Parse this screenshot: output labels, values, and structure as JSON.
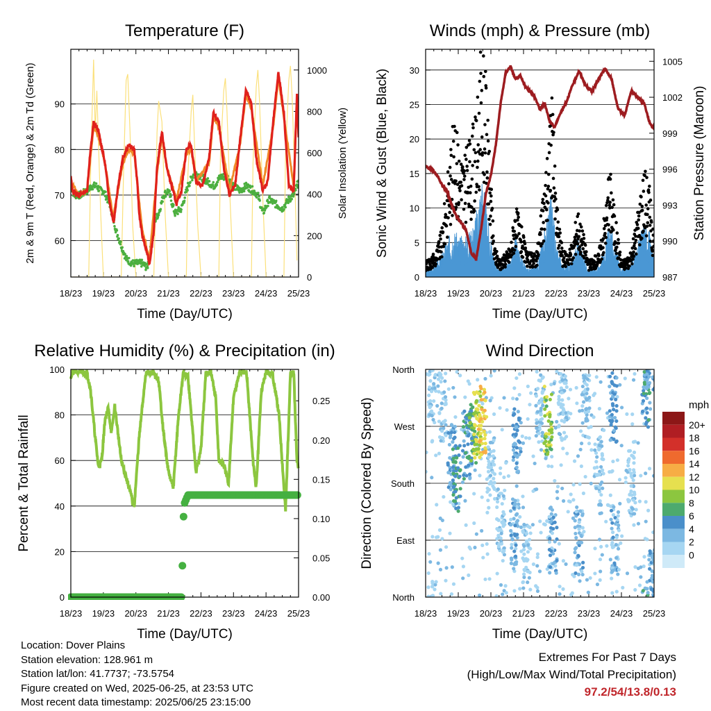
{
  "info": {
    "location": "Location: Dover Plains",
    "elevation": "Station elevation: 128.961 m",
    "latlon": "Station lat/lon: 41.7737; -73.5754",
    "created": "Figure created on Wed, 2025-06-25, at 23:53 UTC",
    "recent": "Most recent data timestamp: 2025/06/25 23:15:00"
  },
  "extremes": {
    "title": "Extremes For Past 7 Days",
    "subtitle": "(High/Low/Max Wind/Total Precipitation)",
    "values": "97.2/54/13.8/0.13"
  },
  "colors": {
    "temp2m": "#e0211c",
    "temp9m": "#f08a28",
    "dewpoint": "#4caf3f",
    "solar": "#fbe07a",
    "gust": "#000000",
    "wind": "#4a97d4",
    "pressure": "#9d1c20",
    "rh": "#8cc63f",
    "rain": "#45b041"
  },
  "chart_data": [
    {
      "type": "line",
      "title": "Temperature (F)",
      "xlabel": "Time (Day/UTC)",
      "ylabel": "2m & 9m T (Red, Orange) & 2m Td (Green)",
      "y2label": "Solar Insolation (Yellow)",
      "xticks": [
        "18/23",
        "19/23",
        "20/23",
        "21/23",
        "22/23",
        "23/23",
        "24/23",
        "25/23"
      ],
      "xlim": [
        0,
        7
      ],
      "ylim": [
        52,
        102
      ],
      "yticks": [
        60,
        70,
        80,
        90
      ],
      "y2lim": [
        0,
        1100
      ],
      "y2ticks": [
        0,
        200,
        400,
        600,
        800,
        1000
      ],
      "grid": true,
      "series": [
        {
          "name": "2m T",
          "color": "#e0211c",
          "x": [
            0,
            0.05,
            0.25,
            0.5,
            0.58,
            0.7,
            0.85,
            1.05,
            1.2,
            1.32,
            1.45,
            1.6,
            1.78,
            1.95,
            2.05,
            2.1,
            2.2,
            2.35,
            2.42,
            2.55,
            2.65,
            2.8,
            2.95,
            3.1,
            3.25,
            3.4,
            3.55,
            3.7,
            3.85,
            4.05,
            4.25,
            4.38,
            4.55,
            4.7,
            4.88,
            5.05,
            5.2,
            5.38,
            5.55,
            5.7,
            5.9,
            6.05,
            6.22,
            6.38,
            6.55,
            6.7,
            6.85,
            6.95,
            7.0
          ],
          "y": [
            74,
            71,
            70,
            71,
            78,
            86,
            84,
            77,
            68,
            64,
            72,
            78,
            81,
            80,
            72,
            66,
            61,
            57,
            55,
            62,
            76,
            84,
            76,
            72,
            68,
            71,
            80,
            81,
            73,
            72,
            78,
            88,
            86,
            76,
            70,
            72,
            82,
            93,
            90,
            78,
            71,
            73,
            86,
            97,
            88,
            72,
            71,
            92,
            83
          ]
        },
        {
          "name": "9m T",
          "color": "#f08a28",
          "x": [
            0,
            0.25,
            0.5,
            0.7,
            0.85,
            1.05,
            1.3,
            1.6,
            1.78,
            1.95,
            2.2,
            2.42,
            2.65,
            2.8,
            2.95,
            3.25,
            3.55,
            3.7,
            3.85,
            4.25,
            4.38,
            4.55,
            4.88,
            5.2,
            5.38,
            5.55,
            5.9,
            6.22,
            6.38,
            6.55,
            6.85,
            6.95,
            7.0
          ],
          "y": [
            73,
            70,
            71,
            85,
            83,
            77,
            65,
            77,
            80,
            79,
            62,
            56,
            75,
            83,
            76,
            69,
            79,
            80,
            73,
            77,
            87,
            85,
            71,
            81,
            92,
            89,
            72,
            85,
            96,
            87,
            72,
            91,
            83
          ]
        },
        {
          "name": "2m Td",
          "color": "#4caf3f",
          "x": [
            0,
            0.1,
            0.3,
            0.5,
            0.65,
            0.8,
            0.9,
            1.0,
            1.2,
            1.4,
            1.55,
            1.7,
            1.9,
            2.05,
            2.2,
            2.35,
            2.45,
            2.55,
            2.7,
            2.85,
            3.0,
            3.2,
            3.4,
            3.6,
            3.8,
            4.0,
            4.2,
            4.4,
            4.6,
            4.8,
            5.0,
            5.2,
            5.4,
            5.6,
            5.75,
            5.9,
            6.1,
            6.3,
            6.5,
            6.7,
            6.85,
            7.0
          ],
          "y": [
            72,
            70,
            70,
            71,
            72,
            72,
            71,
            71,
            68,
            62,
            59,
            56,
            55,
            55,
            55,
            54,
            58,
            64,
            66,
            70,
            71,
            66,
            67,
            72,
            75,
            74,
            73,
            72,
            74,
            74,
            72,
            71,
            72,
            71,
            70,
            66,
            69,
            68,
            67,
            69,
            70,
            73
          ]
        },
        {
          "name": "Solar Insolation",
          "color": "#fbe07a",
          "axis": "right",
          "x": [
            0,
            0.55,
            0.62,
            0.7,
            0.75,
            0.8,
            0.92,
            1.0,
            1.55,
            1.62,
            1.7,
            1.75,
            1.82,
            1.9,
            2.0,
            2.55,
            2.6,
            2.65,
            2.7,
            2.8,
            2.9,
            3.0,
            3.55,
            3.6,
            3.7,
            3.75,
            3.8,
            3.9,
            4.0,
            4.55,
            4.6,
            4.7,
            4.75,
            4.8,
            4.9,
            5.0,
            5.55,
            5.6,
            5.7,
            5.75,
            5.8,
            5.9,
            6.0,
            6.55,
            6.6,
            6.7,
            6.75,
            6.8,
            6.88,
            6.95
          ],
          "y": [
            0,
            0,
            600,
            1050,
            700,
            900,
            300,
            0,
            0,
            500,
            950,
            980,
            700,
            250,
            0,
            0,
            300,
            700,
            850,
            750,
            300,
            0,
            0,
            500,
            800,
            880,
            650,
            250,
            0,
            0,
            600,
            900,
            960,
            800,
            350,
            0,
            0,
            550,
            920,
            1000,
            850,
            380,
            0,
            0,
            600,
            950,
            1020,
            880,
            500,
            80
          ]
        }
      ]
    },
    {
      "type": "scatter",
      "title": "Winds (mph) & Pressure (mb)",
      "xlabel": "Time (Day/UTC)",
      "ylabel": "Sonic Wind & Gust (Blue, Black)",
      "y2label": "Station Pressure (Maroon)",
      "xticks": [
        "18/23",
        "19/23",
        "20/23",
        "21/23",
        "22/23",
        "23/23",
        "24/23",
        "25/23"
      ],
      "xlim": [
        0,
        7
      ],
      "ylim": [
        0,
        33
      ],
      "yticks": [
        0,
        5,
        10,
        15,
        20,
        25,
        30
      ],
      "y2lim": [
        987,
        1006
      ],
      "y2ticks": [
        987,
        990,
        993,
        996,
        999,
        1002,
        1005
      ],
      "grid": true,
      "series": [
        {
          "name": "Gust",
          "color": "#000000",
          "x": [
            0,
            0.3,
            0.5,
            0.7,
            0.85,
            1.0,
            1.2,
            1.4,
            1.55,
            1.65,
            1.75,
            1.85,
            1.95,
            2.1,
            2.3,
            2.6,
            2.75,
            2.9,
            3.1,
            3.4,
            3.6,
            3.75,
            3.85,
            4.0,
            4.2,
            4.5,
            4.65,
            4.8,
            5.0,
            5.3,
            5.55,
            5.65,
            5.8,
            6.0,
            6.3,
            6.55,
            6.7,
            6.85,
            6.95
          ],
          "y": [
            2,
            3,
            6,
            14,
            19,
            17,
            15,
            18,
            20,
            26,
            30,
            24,
            16,
            4,
            2,
            4,
            9,
            7,
            3,
            3,
            10,
            17,
            25,
            10,
            3,
            4,
            9,
            6,
            2,
            3,
            10,
            14,
            8,
            2,
            3,
            10,
            14,
            12,
            6
          ]
        },
        {
          "name": "Wind",
          "color": "#4a97d4",
          "x": [
            0,
            0.3,
            0.5,
            0.7,
            0.85,
            1.0,
            1.2,
            1.4,
            1.55,
            1.65,
            1.75,
            1.85,
            1.95,
            2.1,
            2.3,
            2.6,
            2.75,
            2.9,
            3.1,
            3.4,
            3.6,
            3.75,
            3.85,
            4.0,
            4.2,
            4.5,
            4.65,
            4.8,
            5.0,
            5.3,
            5.55,
            5.65,
            5.8,
            6.0,
            6.3,
            6.55,
            6.7,
            6.85,
            6.95
          ],
          "y": [
            1,
            1.5,
            3,
            5,
            6,
            5,
            5,
            6,
            8,
            11,
            13,
            9,
            6,
            2,
            1,
            2,
            5,
            3,
            1,
            1.5,
            5,
            8,
            11,
            4,
            1.5,
            2,
            5,
            3,
            1,
            1.5,
            5,
            7,
            4,
            1,
            1.5,
            5,
            7,
            6,
            3
          ]
        },
        {
          "name": "Station Pressure",
          "color": "#9d1c20",
          "axis": "right",
          "x": [
            0,
            0.2,
            0.35,
            0.5,
            0.65,
            0.8,
            0.95,
            1.1,
            1.25,
            1.4,
            1.55,
            1.7,
            1.85,
            2.0,
            2.15,
            2.3,
            2.45,
            2.6,
            2.75,
            2.9,
            3.05,
            3.2,
            3.35,
            3.5,
            3.65,
            3.8,
            3.95,
            4.1,
            4.3,
            4.5,
            4.7,
            4.9,
            5.1,
            5.3,
            5.5,
            5.7,
            5.9,
            6.1,
            6.3,
            6.5,
            6.7,
            6.85,
            6.95
          ],
          "y": [
            996.2,
            996.0,
            995.5,
            994.7,
            994.2,
            993.0,
            992.0,
            991.5,
            990.8,
            989.0,
            988.5,
            991.0,
            994.0,
            995.5,
            998.0,
            1001.5,
            1004.0,
            1004.6,
            1003.5,
            1003.8,
            1002.9,
            1002.5,
            1002.0,
            1001.0,
            1001.5,
            1000.0,
            999.5,
            1000.5,
            1001.5,
            1003.0,
            1004.2,
            1003.0,
            1002.5,
            1003.5,
            1004.4,
            1003.5,
            1001.0,
            1000.5,
            1002.5,
            1002.0,
            1001.5,
            1000.0,
            999.5
          ]
        }
      ]
    },
    {
      "type": "line",
      "title": "Relative Humidity (%) & Precipitation (in)",
      "xlabel": "Time (Day/UTC)",
      "ylabel": "Percent & Total Rainfall",
      "xticks": [
        "18/23",
        "19/23",
        "20/23",
        "21/23",
        "22/23",
        "23/23",
        "24/23",
        "25/23"
      ],
      "xlim": [
        0,
        7
      ],
      "ylim": [
        0,
        100
      ],
      "yticks": [
        0,
        20,
        40,
        60,
        80,
        100
      ],
      "y2lim": [
        0,
        0.29
      ],
      "y2ticks": [
        "0.00",
        "0.05",
        "0.10",
        "0.15",
        "0.20",
        "0.25"
      ],
      "grid": true,
      "series": [
        {
          "name": "Relative Humidity",
          "color": "#8cc63f",
          "x": [
            0,
            0.1,
            0.3,
            0.5,
            0.6,
            0.75,
            0.85,
            0.95,
            1.05,
            1.15,
            1.25,
            1.35,
            1.45,
            1.55,
            1.65,
            1.75,
            1.85,
            1.95,
            2.1,
            2.3,
            2.5,
            2.7,
            2.85,
            3.0,
            3.15,
            3.3,
            3.45,
            3.6,
            3.75,
            3.85,
            4.0,
            4.15,
            4.3,
            4.45,
            4.55,
            4.7,
            4.85,
            5.0,
            5.2,
            5.4,
            5.6,
            5.7,
            5.85,
            6.0,
            6.2,
            6.4,
            6.6,
            6.75,
            6.85,
            6.95,
            7.0
          ],
          "y": [
            97,
            99,
            99,
            98,
            92,
            70,
            57,
            60,
            78,
            83,
            72,
            84,
            72,
            60,
            55,
            50,
            45,
            40,
            70,
            98,
            99,
            95,
            72,
            55,
            48,
            78,
            98,
            97,
            72,
            55,
            65,
            98,
            99,
            88,
            60,
            58,
            50,
            88,
            99,
            99,
            60,
            48,
            90,
            99,
            98,
            80,
            38,
            98,
            99,
            60,
            55
          ]
        },
        {
          "name": "Total Rainfall",
          "color": "#45b041",
          "axis": "right",
          "x": [
            0,
            3.4,
            3.42,
            3.44,
            3.46,
            3.5,
            3.6,
            7.0
          ],
          "y": [
            0,
            0,
            0.02,
            0.06,
            0.1,
            0.12,
            0.13,
            0.13
          ]
        }
      ]
    },
    {
      "type": "scatter",
      "title": "Wind Direction",
      "xlabel": "Time (Day/UTC)",
      "ylabel": "Direction (Colored By Speed)",
      "xticks": [
        "18/23",
        "19/23",
        "20/23",
        "21/23",
        "22/23",
        "23/23",
        "24/23",
        "25/23"
      ],
      "xlim": [
        0,
        7
      ],
      "ylim": [
        0,
        360
      ],
      "yticks": [
        "North",
        "East",
        "South",
        "West",
        "North"
      ],
      "grid": true,
      "colorbar_title": "mph",
      "colorbar_labels": [
        "0",
        "2",
        "4",
        "6",
        "8",
        "10",
        "12",
        "14",
        "16",
        "18",
        "20+"
      ],
      "colorbar_colors": [
        "#cfeaf8",
        "#a6d6f2",
        "#7cb8e2",
        "#4a8fca",
        "#4daa6e",
        "#8cc63f",
        "#e6e04f",
        "#f7ad45",
        "#ef6a2e",
        "#d3302a",
        "#b01e23",
        "#8c1717"
      ],
      "clusters": [
        {
          "x": 0.2,
          "dir": 330,
          "speed": 1
        },
        {
          "x": 0.5,
          "dir": 300,
          "speed": 1
        },
        {
          "x": 0.8,
          "dir": 220,
          "speed": 4
        },
        {
          "x": 0.95,
          "dir": 190,
          "speed": 6
        },
        {
          "x": 1.25,
          "dir": 240,
          "speed": 5
        },
        {
          "x": 1.45,
          "dir": 255,
          "speed": 7
        },
        {
          "x": 1.6,
          "dir": 270,
          "speed": 10
        },
        {
          "x": 1.75,
          "dir": 280,
          "speed": 12
        },
        {
          "x": 2.0,
          "dir": 200,
          "speed": 1
        },
        {
          "x": 2.3,
          "dir": 120,
          "speed": 1
        },
        {
          "x": 2.7,
          "dir": 100,
          "speed": 3
        },
        {
          "x": 2.8,
          "dir": 250,
          "speed": 4
        },
        {
          "x": 3.1,
          "dir": 60,
          "speed": 1
        },
        {
          "x": 3.5,
          "dir": 300,
          "speed": 2
        },
        {
          "x": 3.75,
          "dir": 280,
          "speed": 9
        },
        {
          "x": 3.9,
          "dir": 90,
          "speed": 3
        },
        {
          "x": 4.2,
          "dir": 300,
          "speed": 1
        },
        {
          "x": 4.7,
          "dir": 90,
          "speed": 3
        },
        {
          "x": 4.9,
          "dir": 300,
          "speed": 2
        },
        {
          "x": 5.3,
          "dir": 200,
          "speed": 1
        },
        {
          "x": 5.75,
          "dir": 300,
          "speed": 4
        },
        {
          "x": 5.8,
          "dir": 90,
          "speed": 3
        },
        {
          "x": 6.3,
          "dir": 180,
          "speed": 1
        },
        {
          "x": 6.75,
          "dir": 320,
          "speed": 5
        },
        {
          "x": 6.9,
          "dir": 20,
          "speed": 4
        }
      ]
    }
  ]
}
